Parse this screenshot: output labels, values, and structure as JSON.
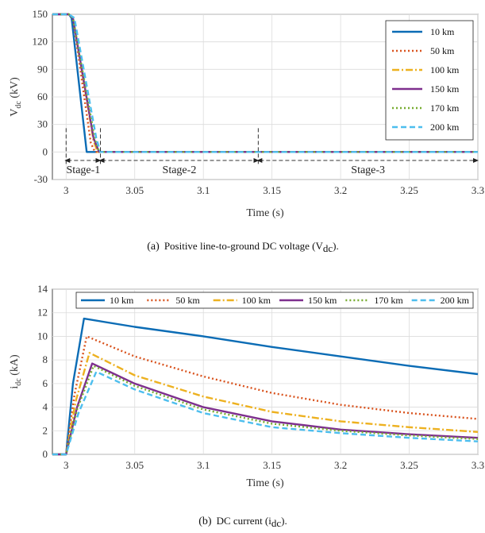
{
  "captions": {
    "a_label": "(a)",
    "a_text": "Positive line-to-ground DC voltage (V",
    "a_sub": "dc",
    "a_end": ").",
    "b_label": "(b)",
    "b_text": "DC current (i",
    "b_sub": "dc",
    "b_end": ")."
  },
  "colors": {
    "10 km": "#0b6cb5",
    "50 km": "#d9531e",
    "100 km": "#edb120",
    "150 km": "#7e2f8e",
    "170 km": "#77ac30",
    "200 km": "#4dbeee"
  },
  "chart_data": [
    {
      "type": "line",
      "ylabel_main": "V",
      "ylabel_sub": "dc",
      "ylabel_unit": " (kV)",
      "xlabel": "Time (s)",
      "xlim": [
        2.99,
        3.3
      ],
      "ylim": [
        -30,
        150
      ],
      "xticks": [
        "3",
        "3.05",
        "3.1",
        "3.15",
        "3.2",
        "3.25",
        "3.3"
      ],
      "xtick_values": [
        3.0,
        3.05,
        3.1,
        3.15,
        3.2,
        3.25,
        3.3
      ],
      "yticks": [
        "-30",
        "0",
        "30",
        "60",
        "90",
        "120",
        "150"
      ],
      "ytick_values": [
        -30,
        0,
        30,
        60,
        90,
        120,
        150
      ],
      "grid": true,
      "legend_position": "top-right",
      "stages": [
        {
          "label": "Stage-1",
          "from": 3.0,
          "to": 3.025
        },
        {
          "label": "Stage-2",
          "from": 3.025,
          "to": 3.14
        },
        {
          "label": "Stage-3",
          "from": 3.14,
          "to": 3.3
        }
      ],
      "series": [
        {
          "name": "10 km",
          "style": "solid",
          "x": [
            2.99,
            3.002,
            3.004,
            3.015,
            3.02,
            3.15,
            3.3
          ],
          "y": [
            150,
            150,
            146,
            0,
            0,
            0,
            0
          ]
        },
        {
          "name": "50 km",
          "style": "dotted",
          "x": [
            2.99,
            3.002,
            3.005,
            3.018,
            3.021,
            3.15,
            3.3
          ],
          "y": [
            150,
            150,
            146,
            10,
            0,
            0,
            0
          ]
        },
        {
          "name": "100 km",
          "style": "dashdot",
          "x": [
            2.99,
            3.002,
            3.005,
            3.02,
            3.023,
            3.15,
            3.3
          ],
          "y": [
            150,
            150,
            146,
            12,
            0,
            0,
            0
          ]
        },
        {
          "name": "150 km",
          "style": "solid",
          "x": [
            2.99,
            3.002,
            3.005,
            3.02,
            3.024,
            3.15,
            3.3
          ],
          "y": [
            150,
            150,
            146,
            15,
            0,
            0,
            0
          ]
        },
        {
          "name": "170 km",
          "style": "dotted",
          "x": [
            2.99,
            3.002,
            3.005,
            3.021,
            3.024,
            3.15,
            3.3
          ],
          "y": [
            150,
            150,
            146,
            14,
            0,
            0,
            0
          ]
        },
        {
          "name": "200 km",
          "style": "dashed",
          "x": [
            2.99,
            3.002,
            3.006,
            3.022,
            3.025,
            3.15,
            3.3
          ],
          "y": [
            150,
            150,
            146,
            15,
            0,
            0,
            0
          ]
        }
      ]
    },
    {
      "type": "line",
      "ylabel_main": "i",
      "ylabel_sub": "dc",
      "ylabel_unit": " (kA)",
      "xlabel": "Time (s)",
      "xlim": [
        2.99,
        3.3
      ],
      "ylim": [
        0,
        14
      ],
      "xticks": [
        "3",
        "3.05",
        "3.1",
        "3.15",
        "3.2",
        "3.25",
        "3.3"
      ],
      "xtick_values": [
        3.0,
        3.05,
        3.1,
        3.15,
        3.2,
        3.25,
        3.3
      ],
      "yticks": [
        "0",
        "2",
        "4",
        "6",
        "8",
        "10",
        "12",
        "14"
      ],
      "ytick_values": [
        0,
        2,
        4,
        6,
        8,
        10,
        12,
        14
      ],
      "grid": true,
      "legend_position": "top",
      "series": [
        {
          "name": "10 km",
          "style": "solid",
          "x": [
            2.99,
            3.0,
            3.005,
            3.013,
            3.05,
            3.1,
            3.15,
            3.2,
            3.25,
            3.3
          ],
          "y": [
            0,
            0,
            6,
            11.5,
            10.8,
            10.0,
            9.1,
            8.3,
            7.5,
            6.8
          ]
        },
        {
          "name": "50 km",
          "style": "dotted",
          "x": [
            2.99,
            3.0,
            3.006,
            3.015,
            3.05,
            3.1,
            3.15,
            3.2,
            3.25,
            3.3
          ],
          "y": [
            0,
            0,
            5,
            10.0,
            8.3,
            6.6,
            5.2,
            4.2,
            3.5,
            3.0
          ]
        },
        {
          "name": "100 km",
          "style": "dashdot",
          "x": [
            2.99,
            3.0,
            3.007,
            3.017,
            3.05,
            3.1,
            3.15,
            3.2,
            3.25,
            3.3
          ],
          "y": [
            0,
            0,
            4.5,
            8.6,
            6.7,
            4.9,
            3.6,
            2.8,
            2.3,
            1.9
          ]
        },
        {
          "name": "150 km",
          "style": "solid",
          "x": [
            2.99,
            3.0,
            3.008,
            3.019,
            3.05,
            3.1,
            3.15,
            3.2,
            3.25,
            3.3
          ],
          "y": [
            0,
            0,
            4,
            7.7,
            6.0,
            4.0,
            2.8,
            2.1,
            1.7,
            1.4
          ]
        },
        {
          "name": "170 km",
          "style": "dotted",
          "x": [
            2.99,
            3.0,
            3.008,
            3.02,
            3.05,
            3.1,
            3.15,
            3.2,
            3.25,
            3.3
          ],
          "y": [
            0,
            0,
            3.8,
            7.5,
            5.8,
            3.8,
            2.6,
            2.0,
            1.6,
            1.3
          ]
        },
        {
          "name": "200 km",
          "style": "dashed",
          "x": [
            2.99,
            3.0,
            3.009,
            3.022,
            3.05,
            3.1,
            3.15,
            3.2,
            3.25,
            3.3
          ],
          "y": [
            0,
            0,
            3.5,
            7.0,
            5.5,
            3.5,
            2.3,
            1.8,
            1.4,
            1.1
          ]
        }
      ]
    }
  ]
}
